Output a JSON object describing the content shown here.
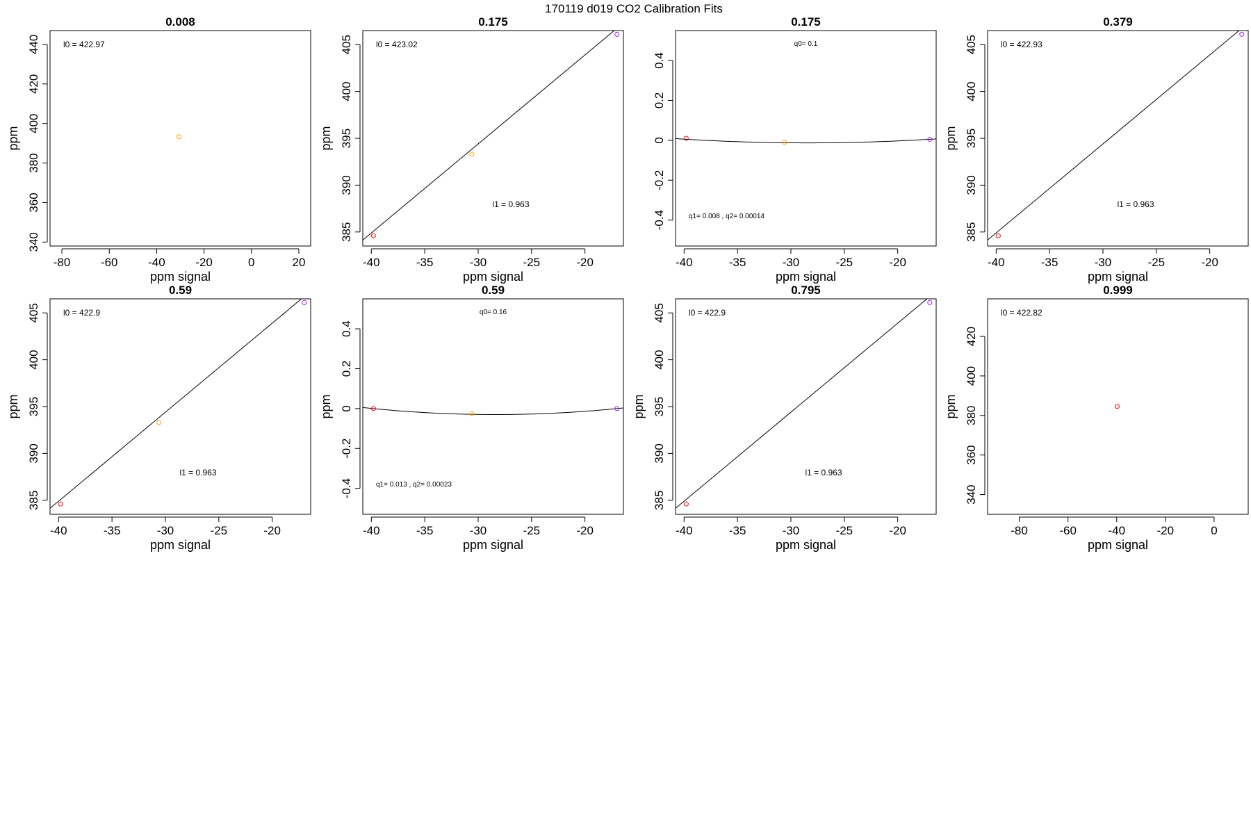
{
  "figure": {
    "title": "170119   d019   CO2 Calibration Fits",
    "colors": {
      "red": "#ff0000",
      "orange": "#ffa500",
      "purple": "#a020f0"
    }
  },
  "chart_data": [
    {
      "type": "scatter",
      "title": "0.008",
      "xlabel": "ppm signal",
      "ylabel": "ppm",
      "xlim": [
        -85,
        25
      ],
      "ylim": [
        338,
        447
      ],
      "xticks": [
        -80,
        -60,
        -40,
        -20,
        0,
        20
      ],
      "yticks": [
        340,
        360,
        380,
        400,
        420,
        440
      ],
      "points": [
        {
          "x": -30.6,
          "y": 393.3,
          "color": "orange"
        }
      ],
      "fit": null,
      "annotations": [
        {
          "text": "l0 =  422.97",
          "pos": "top-left"
        }
      ]
    },
    {
      "type": "scatter",
      "title": "0.175",
      "xlabel": "ppm signal",
      "ylabel": "ppm",
      "xlim": [
        -40.8,
        -16.4
      ],
      "ylim": [
        383.5,
        406.5
      ],
      "xticks": [
        -40,
        -35,
        -30,
        -25,
        -20
      ],
      "yticks": [
        385,
        390,
        395,
        400,
        405
      ],
      "points": [
        {
          "x": -39.8,
          "y": 384.6,
          "color": "red"
        },
        {
          "x": -30.6,
          "y": 393.3,
          "color": "orange"
        },
        {
          "x": -17.0,
          "y": 406.1,
          "color": "purple"
        }
      ],
      "fit": {
        "kind": "linear",
        "intercept": 422.9,
        "slope": 0.95
      },
      "annotations": [
        {
          "text": "l0 =  423.02",
          "pos": "top-left"
        },
        {
          "text": "l1 =  0.963",
          "pos": "lower-middle"
        }
      ]
    },
    {
      "type": "scatter",
      "title": "0.175",
      "xlabel": "ppm signal",
      "ylabel": "",
      "xlim": [
        -40.8,
        -16.4
      ],
      "ylim": [
        -0.53,
        0.55
      ],
      "xticks": [
        -40,
        -35,
        -30,
        -25,
        -20
      ],
      "yticks": [
        -0.4,
        -0.2,
        0.0,
        0.2,
        0.4
      ],
      "points": [
        {
          "x": -39.8,
          "y": 0.01,
          "color": "red"
        },
        {
          "x": -30.6,
          "y": -0.01,
          "color": "orange"
        },
        {
          "x": -17.0,
          "y": 0.005,
          "color": "purple"
        }
      ],
      "fit": {
        "kind": "quadratic",
        "vertex_x": -28.4,
        "vertex_y": -0.013,
        "a": 0.00014
      },
      "annotations": [
        {
          "text": "q0= 0.1",
          "pos": "top-center",
          "small": true
        },
        {
          "text": "q1= 0.008 , q2= 0.00014",
          "pos": "bottom-left",
          "small": true
        }
      ]
    },
    {
      "type": "scatter",
      "title": "0.379",
      "xlabel": "ppm signal",
      "ylabel": "ppm",
      "xlim": [
        -40.8,
        -16.4
      ],
      "ylim": [
        383.5,
        406.5
      ],
      "xticks": [
        -40,
        -35,
        -30,
        -25,
        -20
      ],
      "yticks": [
        385,
        390,
        395,
        400,
        405
      ],
      "points": [
        {
          "x": -39.8,
          "y": 384.6,
          "color": "red"
        },
        {
          "x": -17.0,
          "y": 406.1,
          "color": "purple"
        }
      ],
      "fit": {
        "kind": "linear",
        "intercept": 422.9,
        "slope": 0.95
      },
      "annotations": [
        {
          "text": "l0 =  422.93",
          "pos": "top-left"
        },
        {
          "text": "l1 =  0.963",
          "pos": "lower-middle"
        }
      ]
    },
    {
      "type": "scatter",
      "title": "0.59",
      "xlabel": "ppm signal",
      "ylabel": "ppm",
      "xlim": [
        -40.8,
        -16.4
      ],
      "ylim": [
        383.5,
        406.5
      ],
      "xticks": [
        -40,
        -35,
        -30,
        -25,
        -20
      ],
      "yticks": [
        385,
        390,
        395,
        400,
        405
      ],
      "points": [
        {
          "x": -39.8,
          "y": 384.6,
          "color": "red"
        },
        {
          "x": -30.6,
          "y": 393.3,
          "color": "orange"
        },
        {
          "x": -17.0,
          "y": 406.1,
          "color": "purple"
        }
      ],
      "fit": {
        "kind": "linear",
        "intercept": 422.9,
        "slope": 0.95
      },
      "annotations": [
        {
          "text": "l0 =  422.9",
          "pos": "top-left"
        },
        {
          "text": "l1 =  0.963",
          "pos": "lower-middle"
        }
      ]
    },
    {
      "type": "scatter",
      "title": "0.59",
      "xlabel": "ppm signal",
      "ylabel": "ppm",
      "xlim": [
        -40.8,
        -16.4
      ],
      "ylim": [
        -0.53,
        0.55
      ],
      "xticks": [
        -40,
        -35,
        -30,
        -25,
        -20
      ],
      "yticks": [
        -0.4,
        -0.2,
        0.0,
        0.2,
        0.4
      ],
      "points": [
        {
          "x": -39.8,
          "y": 0.0,
          "color": "red"
        },
        {
          "x": -30.6,
          "y": -0.025,
          "color": "orange"
        },
        {
          "x": -17.0,
          "y": 0.0,
          "color": "purple"
        }
      ],
      "fit": {
        "kind": "quadratic",
        "vertex_x": -28.4,
        "vertex_y": -0.03,
        "a": 0.00023
      },
      "annotations": [
        {
          "text": "q0= 0.16",
          "pos": "top-center",
          "small": true
        },
        {
          "text": "q1= 0.013 , q2= 0.00023",
          "pos": "bottom-left",
          "small": true
        }
      ]
    },
    {
      "type": "scatter",
      "title": "0.795",
      "xlabel": "ppm signal",
      "ylabel": "ppm",
      "xlim": [
        -40.8,
        -16.4
      ],
      "ylim": [
        383.5,
        406.5
      ],
      "xticks": [
        -40,
        -35,
        -30,
        -25,
        -20
      ],
      "yticks": [
        385,
        390,
        395,
        400,
        405
      ],
      "points": [
        {
          "x": -39.8,
          "y": 384.6,
          "color": "red"
        },
        {
          "x": -17.0,
          "y": 406.1,
          "color": "purple"
        }
      ],
      "fit": {
        "kind": "linear",
        "intercept": 422.9,
        "slope": 0.95
      },
      "annotations": [
        {
          "text": "l0 =  422.9",
          "pos": "top-left"
        },
        {
          "text": "l1 =  0.963",
          "pos": "lower-middle"
        }
      ]
    },
    {
      "type": "scatter",
      "title": "0.999",
      "xlabel": "ppm signal",
      "ylabel": "ppm",
      "xlim": [
        -93,
        14
      ],
      "ylim": [
        330,
        439
      ],
      "xticks": [
        -80,
        -60,
        -40,
        -20,
        0
      ],
      "yticks": [
        340,
        360,
        380,
        400,
        420
      ],
      "points": [
        {
          "x": -39.8,
          "y": 384.6,
          "color": "red"
        }
      ],
      "fit": null,
      "annotations": [
        {
          "text": "l0 =  422.82",
          "pos": "top-left"
        }
      ]
    }
  ]
}
